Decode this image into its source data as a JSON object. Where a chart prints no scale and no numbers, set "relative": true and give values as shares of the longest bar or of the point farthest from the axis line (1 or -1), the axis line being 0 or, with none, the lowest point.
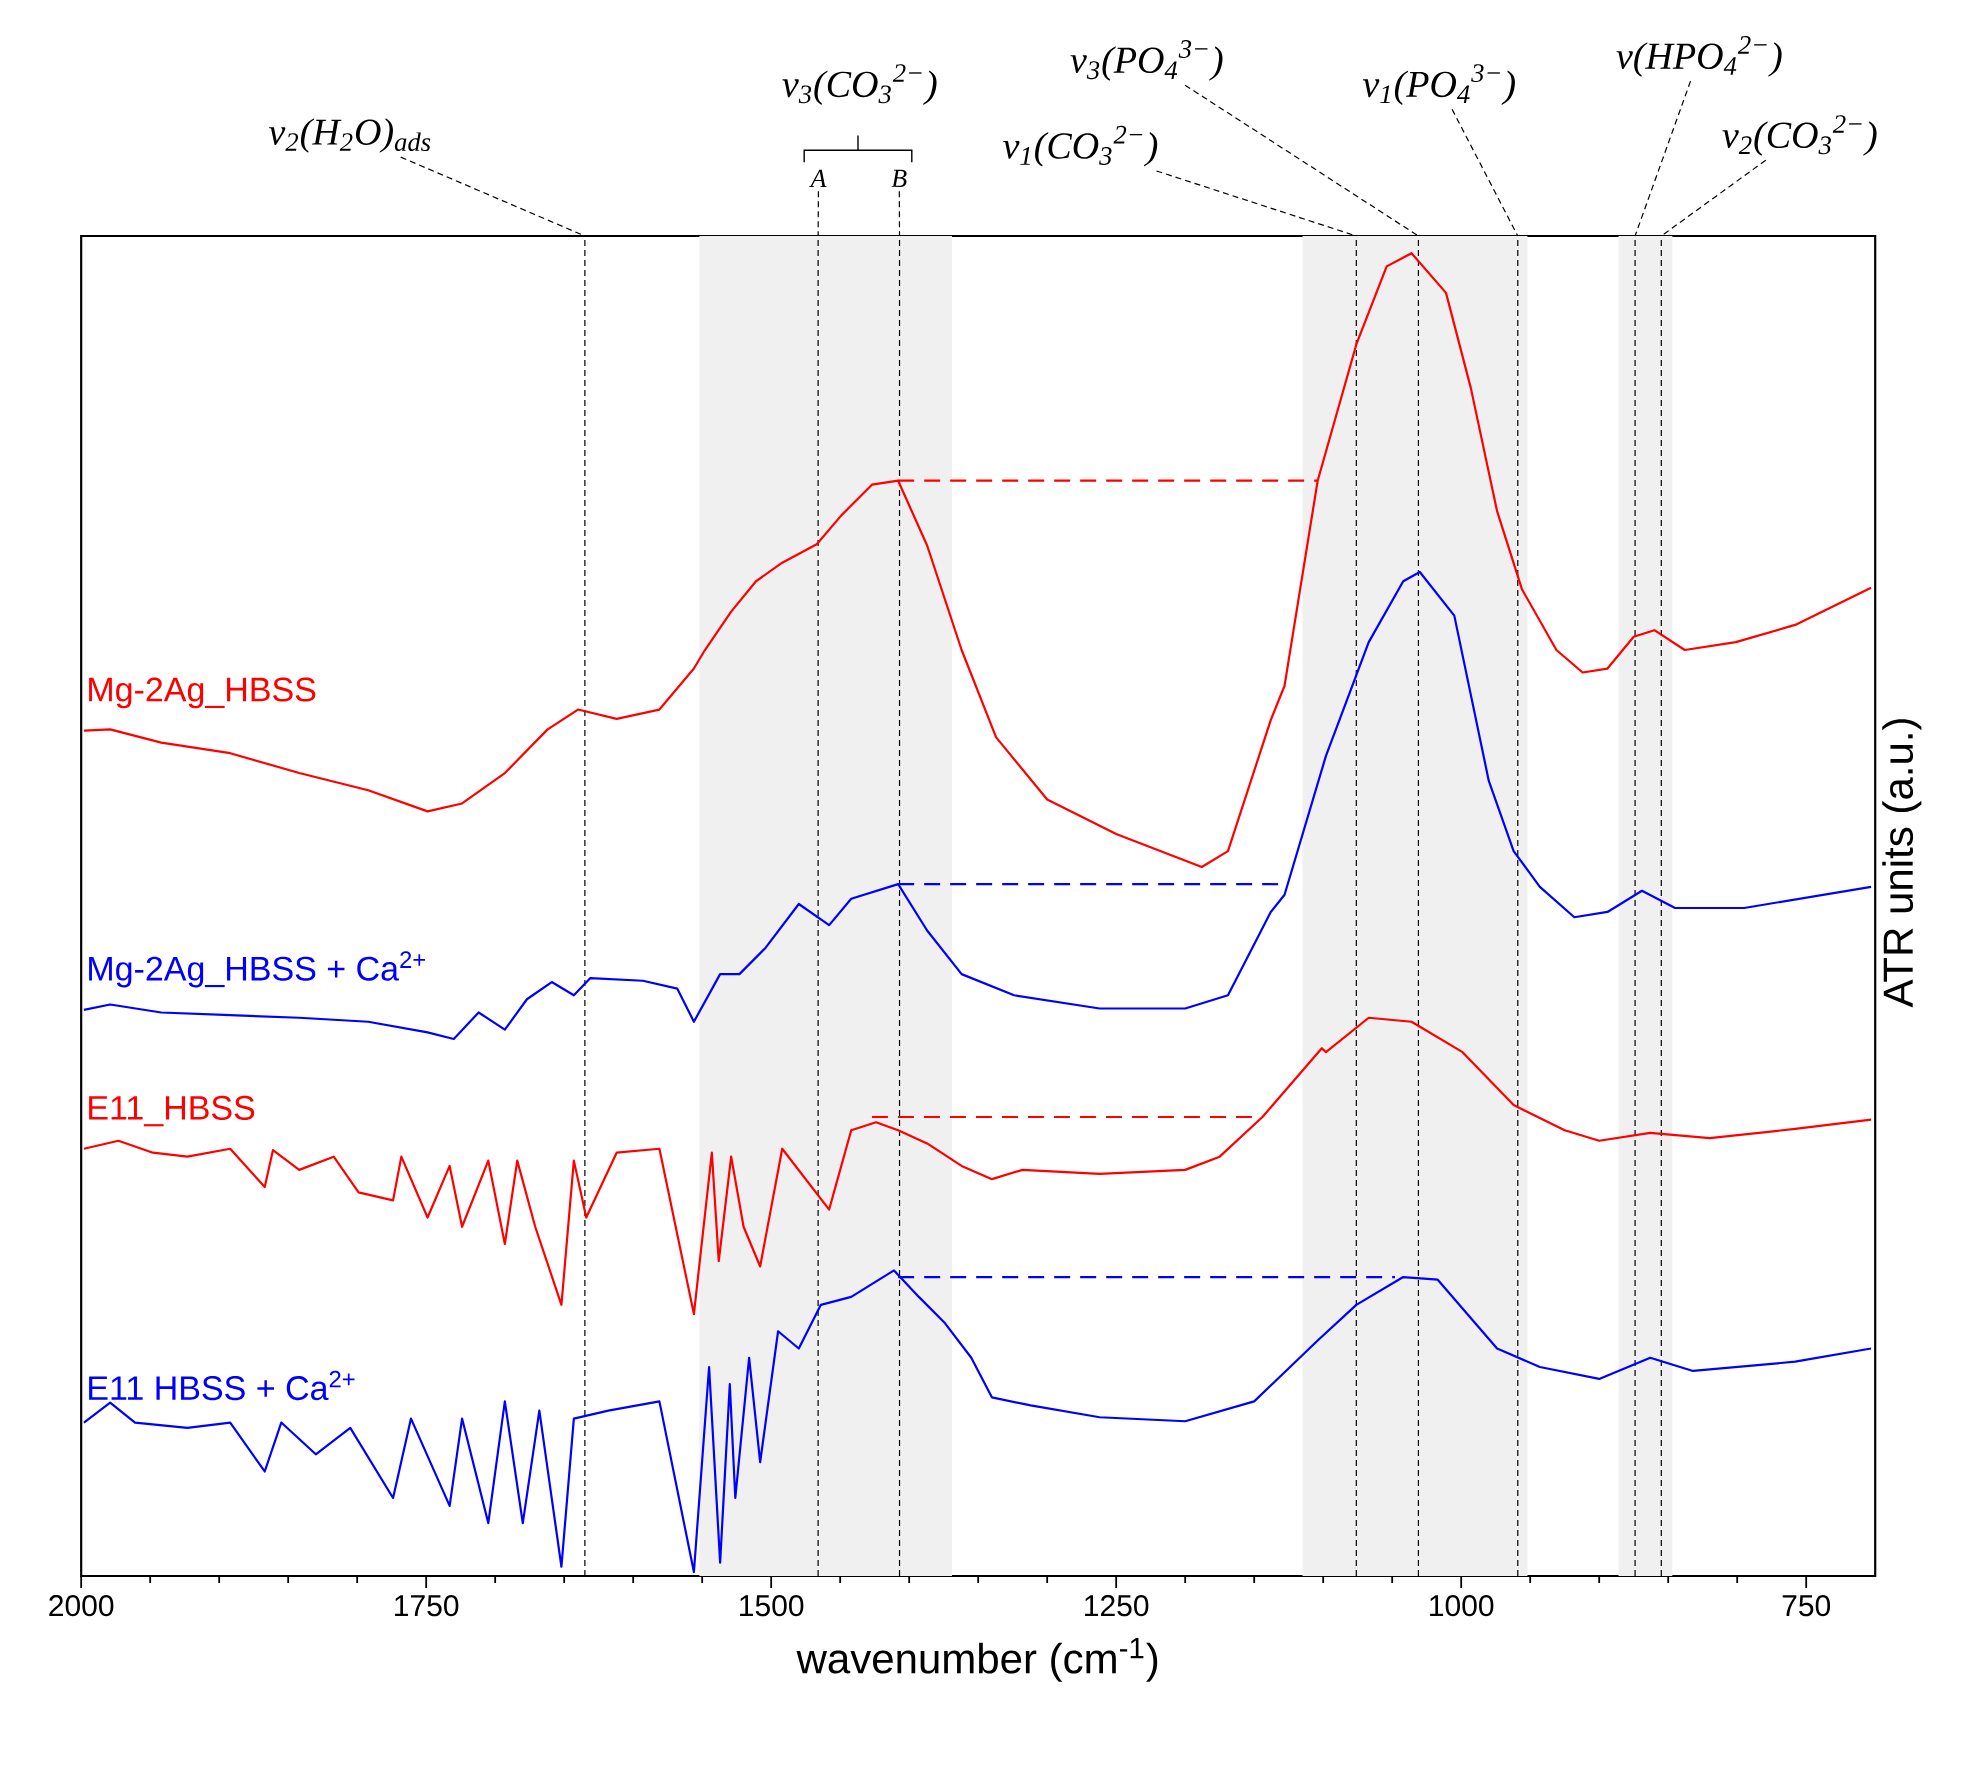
{
  "chart_data": {
    "type": "line",
    "relative": true,
    "xlabel": "wavenumber (cm$^{-1}$)",
    "ylabel": "ATR units (a.u.)",
    "xlim": [
      2000,
      700
    ],
    "xticks": [
      2000,
      1750,
      1500,
      1250,
      1000,
      750
    ],
    "grid": false,
    "legend": false,
    "marker": "none",
    "line_style": "solid",
    "annotations": [
      "ν$_{3}$(CO$_{3}$$^{2−}$)"
    ],
    "bands": [
      {
        "axis": "x",
        "from": 1552,
        "to": 1369,
        "color": "#f0f0f0"
      },
      {
        "axis": "x",
        "from": 1115,
        "to": 952,
        "color": "#f0f0f0"
      },
      {
        "axis": "x",
        "from": 886,
        "to": 847,
        "color": "#f0f0f0"
      }
    ],
    "ref_lines": [
      {
        "axis": "x",
        "value": 1635,
        "label": "ν$_{2}$(H$_{2}$O)$_{ads}$",
        "color": "#000000",
        "line_style": "dashed"
      },
      {
        "axis": "x",
        "value": 1466,
        "label": "A",
        "color": "#000000",
        "line_style": "dashed"
      },
      {
        "axis": "x",
        "value": 1407,
        "label": "B",
        "color": "#000000",
        "line_style": "dashed"
      },
      {
        "axis": "x",
        "value": 1076,
        "label": "ν$_{1}$(CO$_{3}$$^{2−}$)",
        "color": "#000000",
        "line_style": "dashed"
      },
      {
        "axis": "x",
        "value": 1031,
        "label": "ν$_{3}$(PO$_{4}$$^{3−}$)",
        "color": "#000000",
        "line_style": "dashed"
      },
      {
        "axis": "x",
        "value": 959,
        "label": "ν$_{1}$(PO$_{4}$$^{3−}$)",
        "color": "#000000",
        "line_style": "dashed"
      },
      {
        "axis": "x",
        "value": 874,
        "label": "ν(HPO$_{4}$$^{2−}$)",
        "color": "#000000",
        "line_style": "dashed"
      },
      {
        "axis": "x",
        "value": 855,
        "label": "ν$_{2}$(CO$_{3}$$^{2−}$)",
        "color": "#000000",
        "line_style": "dashed"
      }
    ],
    "series": [
      {
        "name": "Mg-2Ag_HBSS",
        "color": "#ff0000",
        "x": [
          1998,
          1979,
          1942,
          1892,
          1842,
          1792,
          1749,
          1724,
          1693,
          1662,
          1640,
          1612,
          1581,
          1556,
          1548,
          1529,
          1511,
          1492,
          1467,
          1449,
          1427,
          1408,
          1387,
          1362,
          1337,
          1300,
          1250,
          1188,
          1169,
          1138,
          1128,
          1104,
          1076,
          1054,
          1036,
          1011,
          993,
          974,
          956,
          931,
          912,
          894,
          875,
          860,
          838,
          801,
          758,
          703
        ],
        "values": [
          0.639,
          0.64,
          0.63,
          0.622,
          0.607,
          0.594,
          0.578,
          0.584,
          0.607,
          0.64,
          0.655,
          0.648,
          0.655,
          0.686,
          0.7,
          0.729,
          0.752,
          0.766,
          0.78,
          0.802,
          0.825,
          0.828,
          0.779,
          0.7,
          0.634,
          0.587,
          0.561,
          0.536,
          0.548,
          0.647,
          0.673,
          0.828,
          0.931,
          0.99,
          1.0,
          0.97,
          0.898,
          0.805,
          0.746,
          0.7,
          0.683,
          0.686,
          0.71,
          0.715,
          0.7,
          0.706,
          0.719,
          0.747
        ]
      },
      {
        "name": "Mg-2Ag_HBSS  + Ca$^{2+}$",
        "color": "#0000ff",
        "x": [
          1998,
          1979,
          1942,
          1892,
          1842,
          1792,
          1749,
          1730,
          1712,
          1693,
          1677,
          1659,
          1643,
          1631,
          1593,
          1568,
          1556,
          1537,
          1523,
          1504,
          1480,
          1458,
          1442,
          1408,
          1387,
          1362,
          1324,
          1262,
          1200,
          1169,
          1138,
          1128,
          1098,
          1067,
          1042,
          1030,
          1005,
          980,
          962,
          943,
          918,
          894,
          869,
          845,
          795,
          703
        ],
        "values": [
          0.428,
          0.432,
          0.426,
          0.424,
          0.422,
          0.419,
          0.411,
          0.406,
          0.426,
          0.413,
          0.436,
          0.449,
          0.439,
          0.452,
          0.45,
          0.444,
          0.419,
          0.455,
          0.455,
          0.475,
          0.508,
          0.492,
          0.512,
          0.523,
          0.488,
          0.455,
          0.439,
          0.429,
          0.429,
          0.439,
          0.502,
          0.515,
          0.62,
          0.706,
          0.752,
          0.759,
          0.726,
          0.601,
          0.548,
          0.521,
          0.498,
          0.502,
          0.518,
          0.505,
          0.505,
          0.521
        ]
      },
      {
        "name": "E11_HBSS",
        "color": "#ff0000",
        "x": [
          1998,
          1973,
          1948,
          1923,
          1892,
          1867,
          1861,
          1842,
          1817,
          1799,
          1774,
          1768,
          1749,
          1733,
          1724,
          1705,
          1693,
          1684,
          1671,
          1652,
          1643,
          1634,
          1612,
          1581,
          1556,
          1543,
          1538,
          1529,
          1520,
          1508,
          1492,
          1458,
          1442,
          1424,
          1408,
          1387,
          1362,
          1340,
          1318,
          1262,
          1200,
          1175,
          1144,
          1101,
          1098,
          1067,
          1036,
          999,
          962,
          925,
          900,
          863,
          820,
          758,
          703
        ],
        "values": [
          0.323,
          0.329,
          0.32,
          0.317,
          0.323,
          0.294,
          0.322,
          0.307,
          0.317,
          0.29,
          0.284,
          0.317,
          0.271,
          0.31,
          0.264,
          0.314,
          0.251,
          0.314,
          0.264,
          0.205,
          0.314,
          0.271,
          0.32,
          0.323,
          0.198,
          0.32,
          0.238,
          0.317,
          0.264,
          0.234,
          0.323,
          0.277,
          0.337,
          0.343,
          0.337,
          0.327,
          0.31,
          0.3,
          0.307,
          0.304,
          0.307,
          0.317,
          0.347,
          0.399,
          0.396,
          0.422,
          0.419,
          0.396,
          0.356,
          0.337,
          0.329,
          0.335,
          0.331,
          0.338,
          0.345
        ]
      },
      {
        "name": "E11 HBSS + Ca$^{2+}$",
        "color": "#0000ff",
        "x": [
          1998,
          1979,
          1961,
          1923,
          1892,
          1867,
          1855,
          1830,
          1805,
          1774,
          1761,
          1733,
          1724,
          1705,
          1693,
          1680,
          1668,
          1652,
          1643,
          1618,
          1581,
          1556,
          1545,
          1537,
          1530,
          1526,
          1516,
          1508,
          1495,
          1480,
          1464,
          1442,
          1411,
          1393,
          1374,
          1355,
          1340,
          1312,
          1262,
          1200,
          1150,
          1104,
          1076,
          1042,
          1017,
          974,
          943,
          900,
          863,
          832,
          758,
          703
        ],
        "values": [
          0.116,
          0.131,
          0.116,
          0.112,
          0.116,
          0.079,
          0.116,
          0.092,
          0.112,
          0.059,
          0.119,
          0.053,
          0.119,
          0.04,
          0.132,
          0.04,
          0.125,
          0.007,
          0.119,
          0.125,
          0.132,
          0.003,
          0.158,
          0.01,
          0.145,
          0.059,
          0.165,
          0.086,
          0.185,
          0.172,
          0.205,
          0.211,
          0.231,
          0.211,
          0.191,
          0.165,
          0.135,
          0.129,
          0.12,
          0.117,
          0.132,
          0.178,
          0.205,
          0.226,
          0.224,
          0.172,
          0.158,
          0.149,
          0.165,
          0.155,
          0.162,
          0.172
        ]
      },
      {
        "type": "line",
        "line_style": "dashed",
        "color": "#ff0000",
        "x": [
          1408,
          1104
        ],
        "values": [
          0.828,
          0.828
        ]
      },
      {
        "type": "line",
        "line_style": "dashed",
        "color": "#0000ff",
        "x": [
          1408,
          1130
        ],
        "values": [
          0.523,
          0.523
        ]
      },
      {
        "type": "line",
        "line_style": "dashed",
        "color": "#ff0000",
        "x": [
          1427,
          1144
        ],
        "values": [
          0.347,
          0.347
        ]
      },
      {
        "type": "line",
        "line_style": "dashed",
        "color": "#0000ff",
        "x": [
          1408,
          1048
        ],
        "values": [
          0.226,
          0.226
        ]
      }
    ]
  }
}
